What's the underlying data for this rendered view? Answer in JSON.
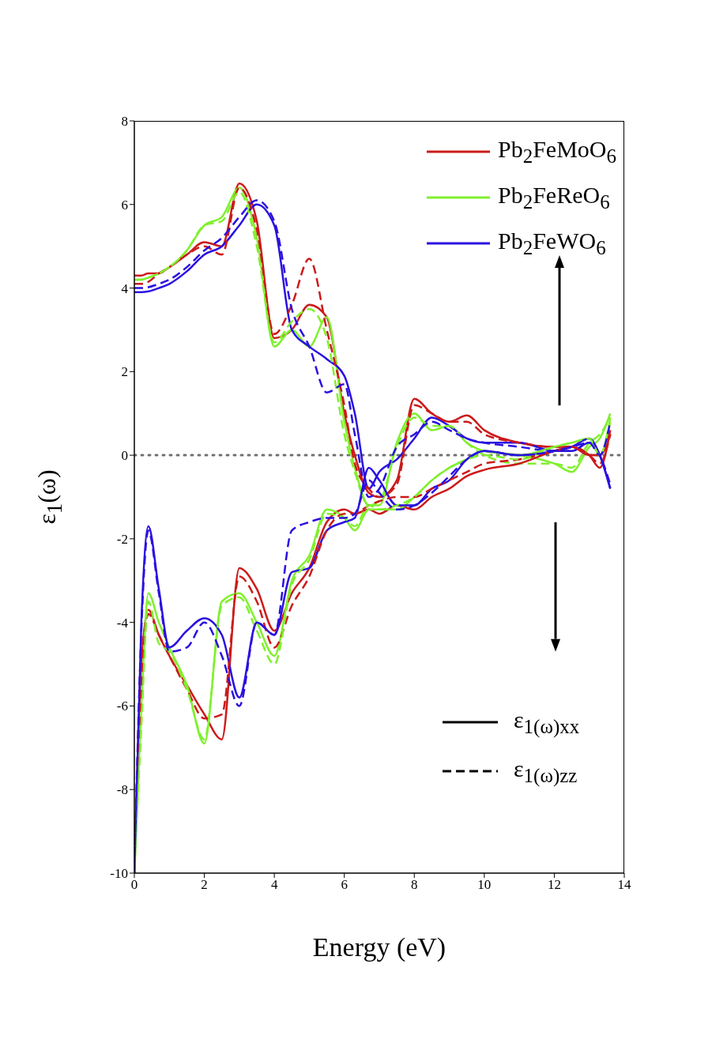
{
  "chart_data": {
    "type": "line",
    "xlabel": "Energy (eV)",
    "ylabel": "ε$_{1}$(ω)",
    "x": [
      0,
      0.2,
      0.4,
      0.7,
      1,
      1.5,
      2,
      2.5,
      3,
      3.5,
      4,
      4.5,
      5,
      5.5,
      6,
      6.3,
      6.7,
      7,
      7.5,
      8,
      8.5,
      9,
      9.5,
      10,
      11,
      12,
      12.5,
      13,
      13.3,
      13.6
    ],
    "xlim": [
      0,
      14
    ],
    "xticks": [
      0,
      2,
      4,
      6,
      8,
      10,
      12,
      14
    ],
    "ylim": [
      -10,
      8
    ],
    "yticks": [
      -10,
      -8,
      -6,
      -4,
      -2,
      0,
      2,
      4,
      6,
      8
    ],
    "legend": "top right",
    "ref_lines": [
      {
        "axis": "y",
        "value": 0,
        "color": "#707070",
        "line_style": "dotted"
      }
    ],
    "annotations": [
      "ε$_{1(ω)}$$_{xx}$",
      "ε$_{1(ω)}$$_{zz}$"
    ],
    "series": [
      {
        "name": "Pb$_{2}$FeMoO$_{6}$",
        "color": "#cc1a1a",
        "line_style": "solid",
        "values": [
          4.3,
          4.3,
          4.35,
          4.35,
          4.5,
          4.8,
          5.1,
          5.0,
          6.5,
          5.6,
          2.8,
          3.0,
          3.6,
          3.3,
          1.0,
          0.0,
          -0.9,
          -1.0,
          -0.6,
          1.35,
          1.0,
          0.8,
          0.95,
          0.6,
          0.3,
          0.2,
          0.2,
          0.0,
          -0.3,
          0.6
        ]
      },
      {
        "name": "Pb$_{2}$FeReO$_{6}$",
        "color": "#80f02e",
        "line_style": "solid",
        "values": [
          4.2,
          4.2,
          4.25,
          4.35,
          4.5,
          4.9,
          5.5,
          5.7,
          6.4,
          5.2,
          2.6,
          3.0,
          2.6,
          3.3,
          0.8,
          -0.3,
          -1.2,
          -1.2,
          0.3,
          1.0,
          0.6,
          0.7,
          0.3,
          0.1,
          0.0,
          -0.2,
          -0.4,
          0.2,
          0.4,
          1.0
        ]
      },
      {
        "name": "Pb$_{2}$FeWO$_{6}$",
        "color": "#2a10e0",
        "line_style": "solid",
        "values": [
          3.9,
          3.9,
          3.92,
          4.0,
          4.1,
          4.4,
          4.8,
          5.0,
          5.5,
          6.0,
          5.5,
          3.0,
          2.6,
          2.3,
          1.9,
          1.0,
          -0.8,
          -0.4,
          -0.1,
          0.4,
          0.9,
          0.7,
          0.4,
          0.3,
          0.3,
          0.1,
          0.1,
          0.3,
          0.0,
          -0.8
        ]
      },
      {
        "color": "#cc1a1a",
        "line_style": "dashed",
        "values": [
          4.1,
          4.1,
          4.15,
          4.35,
          4.5,
          4.8,
          5.0,
          4.8,
          6.4,
          5.4,
          2.9,
          3.6,
          4.7,
          3.0,
          1.2,
          -0.2,
          -0.8,
          -1.0,
          -0.7,
          1.2,
          1.0,
          0.8,
          0.8,
          0.5,
          0.3,
          0.2,
          0.2,
          0.0,
          -0.2,
          0.5
        ]
      },
      {
        "color": "#80f02e",
        "line_style": "dashed",
        "values": [
          4.2,
          4.2,
          4.25,
          4.35,
          4.5,
          4.9,
          5.5,
          5.6,
          6.3,
          5.0,
          2.7,
          3.2,
          3.5,
          2.8,
          0.5,
          -0.4,
          -1.2,
          -1.1,
          0.2,
          0.9,
          0.7,
          0.7,
          0.3,
          0.0,
          -0.2,
          -0.2,
          -0.3,
          0.3,
          0.5,
          0.9
        ]
      },
      {
        "color": "#2a10e0",
        "line_style": "dashed",
        "values": [
          4.0,
          4.0,
          4.02,
          4.1,
          4.2,
          4.5,
          4.9,
          5.2,
          5.7,
          6.1,
          5.6,
          3.5,
          2.6,
          1.5,
          1.7,
          0.5,
          -1.0,
          -0.8,
          0.2,
          0.5,
          0.8,
          0.6,
          0.4,
          0.3,
          0.2,
          0.1,
          0.1,
          0.3,
          0.0,
          -0.7
        ]
      },
      {
        "color": "#cc1a1a",
        "line_style": "solid",
        "values": [
          -10,
          -5,
          -3.7,
          -4.3,
          -4.8,
          -5.5,
          -6.2,
          -6.8,
          -2.7,
          -3.2,
          -4.2,
          -3.3,
          -2.7,
          -1.6,
          -1.3,
          -1.4,
          -1.3,
          -1.4,
          -1.2,
          -1.3,
          -1.0,
          -0.8,
          -0.5,
          -0.35,
          -0.2,
          0.1,
          0.2,
          0.0,
          0.0,
          0.5
        ]
      },
      {
        "color": "#80f02e",
        "line_style": "solid",
        "values": [
          -10,
          -6,
          -3.3,
          -4.0,
          -4.6,
          -5.5,
          -6.9,
          -3.5,
          -3.3,
          -4.0,
          -4.8,
          -3.0,
          -2.4,
          -1.3,
          -1.5,
          -1.8,
          -1.3,
          -1.3,
          -1.3,
          -1.0,
          -0.6,
          -0.3,
          -0.1,
          0.1,
          0.0,
          0.2,
          0.3,
          0.4,
          0.0,
          0.8
        ]
      },
      {
        "color": "#2a10e0",
        "line_style": "solid",
        "values": [
          -10,
          -4,
          -1.7,
          -3.2,
          -4.6,
          -4.2,
          -3.9,
          -4.3,
          -5.8,
          -4.0,
          -4.3,
          -2.8,
          -2.7,
          -1.8,
          -1.6,
          -1.5,
          -0.3,
          -0.6,
          -1.2,
          -1.2,
          -0.8,
          -0.6,
          -0.1,
          0.1,
          0.0,
          0.1,
          0.2,
          0.4,
          0.0,
          -0.8
        ]
      },
      {
        "color": "#cc1a1a",
        "line_style": "dashed",
        "values": [
          -10,
          -5.5,
          -3.8,
          -4.3,
          -4.8,
          -5.6,
          -6.3,
          -6.2,
          -2.9,
          -3.5,
          -4.6,
          -3.6,
          -2.9,
          -1.8,
          -1.4,
          -1.4,
          -1.2,
          -1.1,
          -1.0,
          -1.0,
          -0.8,
          -0.6,
          -0.4,
          -0.2,
          -0.1,
          0.1,
          0.2,
          0.0,
          0.0,
          0.6
        ]
      },
      {
        "color": "#80f02e",
        "line_style": "dashed",
        "values": [
          -10,
          -6.5,
          -3.5,
          -4.5,
          -4.7,
          -5.6,
          -6.8,
          -3.6,
          -3.4,
          -4.2,
          -5.0,
          -3.1,
          -2.5,
          -1.4,
          -1.5,
          -1.7,
          -1.2,
          -1.3,
          -1.2,
          -1.0,
          -0.6,
          -0.3,
          -0.1,
          0.0,
          -0.1,
          0.2,
          0.3,
          0.4,
          0.0,
          0.9
        ]
      },
      {
        "color": "#2a10e0",
        "line_style": "dashed",
        "values": [
          -10,
          -4.2,
          -1.8,
          -3.3,
          -4.7,
          -4.6,
          -4.0,
          -4.8,
          -6.0,
          -4.0,
          -4.3,
          -1.8,
          -1.6,
          -1.5,
          -1.5,
          -1.4,
          -0.6,
          -0.9,
          -1.3,
          -1.2,
          -0.9,
          -0.5,
          -0.1,
          0.1,
          0.0,
          0.1,
          0.2,
          0.3,
          0.0,
          0.8
        ]
      }
    ]
  }
}
